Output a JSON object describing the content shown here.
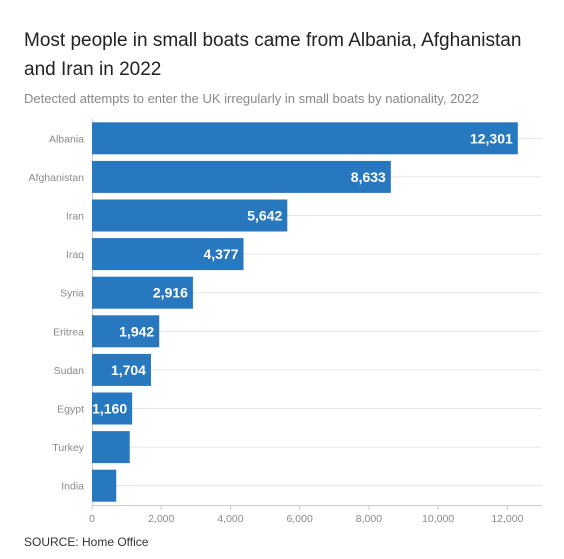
{
  "chart_data": {
    "type": "bar",
    "orientation": "horizontal",
    "title": "Most people in small boats came from Albania, Afghanistan and Iran in 2022",
    "subtitle": "Detected attempts to enter the UK irregularly in small boats by nationality, 2022",
    "source": "SOURCE: Home Office",
    "categories": [
      "Albania",
      "Afghanistan",
      "Iran",
      "Iraq",
      "Syria",
      "Eritrea",
      "Sudan",
      "Egypt",
      "Turkey",
      "India"
    ],
    "values": [
      12301,
      8633,
      5642,
      4377,
      2916,
      1942,
      1704,
      1160,
      1090,
      700
    ],
    "data_labels": [
      "12,301",
      "8,633",
      "5,642",
      "4,377",
      "2,916",
      "1,942",
      "1,704",
      "1,160",
      "",
      ""
    ],
    "xlim": [
      0,
      13000
    ],
    "xticks": [
      0,
      2000,
      4000,
      6000,
      8000,
      10000,
      12000
    ],
    "xtick_labels": [
      "0",
      "2,000",
      "4,000",
      "6,000",
      "8,000",
      "10,000",
      "12,000"
    ],
    "bar_color": "#2878c0",
    "grid": true
  }
}
